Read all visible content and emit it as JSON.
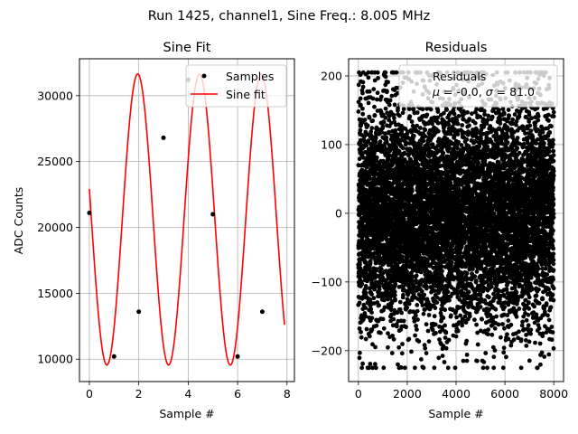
{
  "figure_title": "Run 1425, channel1, Sine Freq.: 8.005 MHz",
  "chart_data": [
    {
      "type": "line",
      "title": "Sine Fit",
      "xlabel": "Sample #",
      "ylabel": "ADC Counts",
      "xlim": [
        -0.4,
        8.3
      ],
      "ylim": [
        8300,
        32800
      ],
      "xticks": [
        0,
        2,
        4,
        6,
        8
      ],
      "yticks": [
        10000,
        15000,
        20000,
        25000,
        30000
      ],
      "grid": true,
      "legend_position": "top-right",
      "series": [
        {
          "name": "Samples",
          "kind": "scatter",
          "color": "#000000",
          "x": [
            0,
            1,
            2,
            3,
            4,
            5,
            6,
            7
          ],
          "y": [
            21100,
            10200,
            13600,
            26800,
            31200,
            21000,
            10200,
            13600
          ]
        },
        {
          "name": "Sine fit",
          "kind": "line",
          "color": "#ff0000",
          "fit": {
            "model": "offset + amplitude * sin(2*pi*frequency*x + phase)",
            "offset": 20600,
            "amplitude": 11050,
            "frequency": 0.4003,
            "phase": 2.93,
            "x_range": [
              0,
              7.9
            ]
          }
        }
      ]
    },
    {
      "type": "scatter",
      "title": "Residuals",
      "xlabel": "Sample #",
      "ylabel": "",
      "xlim": [
        -400,
        8400
      ],
      "ylim": [
        -245,
        225
      ],
      "xticks": [
        0,
        2000,
        4000,
        6000,
        8000
      ],
      "yticks": [
        -200,
        -100,
        0,
        100,
        200
      ],
      "grid": true,
      "legend_position": "top-right",
      "series": [
        {
          "name": "Residuals",
          "color": "#000000",
          "statistics": "$\\mu$ = -0.0, $\\sigma$ = 81.0",
          "point_count": 8000,
          "x_range": [
            0,
            8000
          ]
        }
      ]
    }
  ]
}
